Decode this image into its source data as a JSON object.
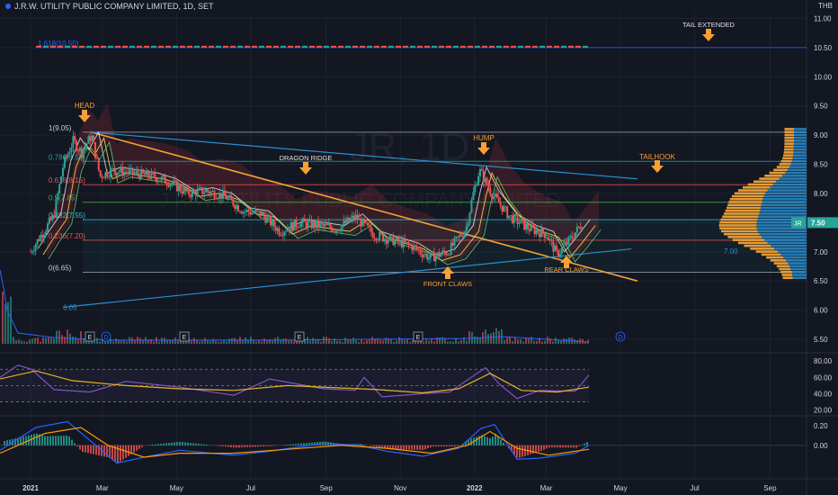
{
  "header": {
    "title": "J.R.W. UTILITY PUBLIC COMPANY LIMITED, 1D, SET",
    "currency": "THB"
  },
  "watermark": {
    "big": "JR, 1D",
    "small": "J.R.W. UTILITY PUBLIC COMPANY LIMITED"
  },
  "colors": {
    "background": "#131722",
    "grid": "#1e222d",
    "up": "#26a69a",
    "down": "#ef5350",
    "trendline": "#f0a33a",
    "channel": "#2a8ecf",
    "annotation": "#f7a035",
    "rsi": "#7e57c2",
    "rsi_ma": "#e6b422",
    "macd": "#2962ff",
    "macd_signal": "#ff9800",
    "volume": "#2962ff",
    "cloud": "#b7323c"
  },
  "annotations": {
    "head": "HEAD",
    "dragon_ridge": "DRAGON RIDGE",
    "hump": "HUMP",
    "tailhook": "TAILHOOK",
    "tail_extended": "TAIL EXTENDED",
    "front_claws": "FRONT CLAWS",
    "rear_claws": "REAR CLAWS"
  },
  "price_label": {
    "symbol": "JR",
    "value": "7.50"
  },
  "line_labels": {
    "channel_low": "6.05",
    "support": "7.00"
  },
  "event_markers": {
    "earnings": "E",
    "dividend": "D"
  },
  "chart_data": [
    {
      "type": "candlestick",
      "title": "J.R.W. UTILITY PUBLIC COMPANY LIMITED, 1D, SET",
      "ylim": [
        5.3,
        11.1
      ],
      "y_ticks": [
        "11.00",
        "10.50",
        "10.00",
        "9.50",
        "9.00",
        "8.50",
        "8.00",
        "7.50",
        "7.00",
        "6.50",
        "6.00",
        "5.50"
      ],
      "x_ticks": [
        "2021",
        "Mar",
        "May",
        "Jul",
        "Sep",
        "Nov",
        "2022",
        "Mar",
        "May",
        "Jul",
        "Sep"
      ],
      "close_path": [
        [
          "2021-01-01",
          7.0
        ],
        [
          "2021-01-10",
          7.3
        ],
        [
          "2021-01-20",
          7.6
        ],
        [
          "2021-01-28",
          8.5
        ],
        [
          "2021-02-05",
          8.9
        ],
        [
          "2021-02-12",
          8.7
        ],
        [
          "2021-02-20",
          9.0
        ],
        [
          "2021-02-27",
          8.3
        ],
        [
          "2021-03-10",
          8.4
        ],
        [
          "2021-03-25",
          8.35
        ],
        [
          "2021-04-10",
          8.3
        ],
        [
          "2021-04-25",
          8.2
        ],
        [
          "2021-05-10",
          8.0
        ],
        [
          "2021-05-25",
          8.05
        ],
        [
          "2021-06-10",
          7.95
        ],
        [
          "2021-06-25",
          7.7
        ],
        [
          "2021-07-10",
          7.65
        ],
        [
          "2021-07-25",
          7.35
        ],
        [
          "2021-08-10",
          7.5
        ],
        [
          "2021-08-25",
          7.45
        ],
        [
          "2021-09-10",
          7.4
        ],
        [
          "2021-09-25",
          7.6
        ],
        [
          "2021-10-10",
          7.3
        ],
        [
          "2021-10-25",
          7.2
        ],
        [
          "2021-11-10",
          7.1
        ],
        [
          "2021-11-25",
          6.9
        ],
        [
          "2021-12-10",
          7.0
        ],
        [
          "2021-12-25",
          7.4
        ],
        [
          "2021-12-31",
          8.0
        ],
        [
          "2022-01-05",
          8.4
        ],
        [
          "2022-01-15",
          8.0
        ],
        [
          "2022-01-30",
          7.6
        ],
        [
          "2022-02-15",
          7.4
        ],
        [
          "2022-03-01",
          7.3
        ],
        [
          "2022-03-10",
          6.95
        ],
        [
          "2022-03-20",
          7.2
        ],
        [
          "2022-03-31",
          7.5
        ]
      ],
      "fib_levels": [
        {
          "label": "1.618(10.50)",
          "value": 10.5
        },
        {
          "label": "1(9.05)",
          "value": 9.05
        },
        {
          "label": "0.786(8.55)",
          "value": 8.55
        },
        {
          "label": "0.618(8.15)",
          "value": 8.15
        },
        {
          "label": "0.5(7.85)",
          "value": 7.85
        },
        {
          "label": "0.382(7.55)",
          "value": 7.55
        },
        {
          "label": "0.236(7.20)",
          "value": 7.2
        },
        {
          "label": "0(6.65)",
          "value": 6.65
        }
      ],
      "trendlines": [
        {
          "name": "descending",
          "from": [
            "2021-02-20",
            9.05
          ],
          "to": [
            "2022-05-15",
            6.5
          ]
        },
        {
          "name": "channel-top",
          "from": [
            "2021-02-20",
            9.05
          ],
          "to": [
            "2022-05-15",
            8.25
          ]
        },
        {
          "name": "channel-bottom",
          "from": [
            "2021-01-28",
            6.05
          ],
          "to": [
            "2022-05-10",
            7.05
          ]
        }
      ]
    },
    {
      "type": "line",
      "title": "",
      "ylim": [
        15,
        88
      ],
      "y_ticks": [
        "80.00",
        "60.00",
        "40.00",
        "20.00"
      ],
      "bands": [
        70,
        50,
        30
      ],
      "series": [
        {
          "values": [
            [
              0,
              60
            ],
            [
              20,
              75
            ],
            [
              35,
              70
            ],
            [
              60,
              45
            ],
            [
              100,
              42
            ],
            [
              140,
              55
            ],
            [
              200,
              48
            ],
            [
              260,
              38
            ],
            [
              300,
              58
            ],
            [
              360,
              46
            ],
            [
              395,
              44
            ],
            [
              405,
              60
            ],
            [
              425,
              36
            ],
            [
              470,
              40
            ],
            [
              500,
              42
            ],
            [
              540,
              72
            ],
            [
              555,
              52
            ],
            [
              575,
              34
            ],
            [
              600,
              44
            ],
            [
              640,
              43
            ],
            [
              655,
              63
            ]
          ]
        },
        {
          "values": [
            [
              0,
              58
            ],
            [
              40,
              68
            ],
            [
              80,
              56
            ],
            [
              140,
              50
            ],
            [
              200,
              46
            ],
            [
              260,
              44
            ],
            [
              320,
              50
            ],
            [
              380,
              47
            ],
            [
              420,
              45
            ],
            [
              470,
              41
            ],
            [
              510,
              46
            ],
            [
              545,
              65
            ],
            [
              580,
              44
            ],
            [
              620,
              42
            ],
            [
              655,
              48
            ]
          ]
        }
      ]
    },
    {
      "type": "bar",
      "title": "",
      "ylim": [
        -0.32,
        0.28
      ],
      "y_ticks": [
        "0.20",
        "0.00"
      ],
      "series": [
        {
          "values": [
            [
              0,
              -0.05
            ],
            [
              40,
              0.18
            ],
            [
              75,
              0.24
            ],
            [
              100,
              0.05
            ],
            [
              130,
              -0.18
            ],
            [
              160,
              -0.12
            ],
            [
              200,
              -0.05
            ],
            [
              260,
              -0.1
            ],
            [
              300,
              -0.06
            ],
            [
              360,
              0.02
            ],
            [
              400,
              0.0
            ],
            [
              430,
              -0.06
            ],
            [
              470,
              -0.11
            ],
            [
              510,
              -0.03
            ],
            [
              535,
              0.17
            ],
            [
              550,
              0.21
            ],
            [
              575,
              -0.14
            ],
            [
              600,
              -0.13
            ],
            [
              640,
              -0.08
            ],
            [
              655,
              0.0
            ]
          ]
        },
        {
          "values": [
            [
              0,
              -0.08
            ],
            [
              50,
              0.12
            ],
            [
              90,
              0.18
            ],
            [
              120,
              0.0
            ],
            [
              160,
              -0.12
            ],
            [
              200,
              -0.08
            ],
            [
              260,
              -0.08
            ],
            [
              320,
              -0.04
            ],
            [
              380,
              0.0
            ],
            [
              430,
              -0.03
            ],
            [
              480,
              -0.08
            ],
            [
              520,
              0.0
            ],
            [
              545,
              0.14
            ],
            [
              575,
              -0.03
            ],
            [
              610,
              -0.1
            ],
            [
              655,
              -0.04
            ]
          ]
        }
      ]
    }
  ]
}
